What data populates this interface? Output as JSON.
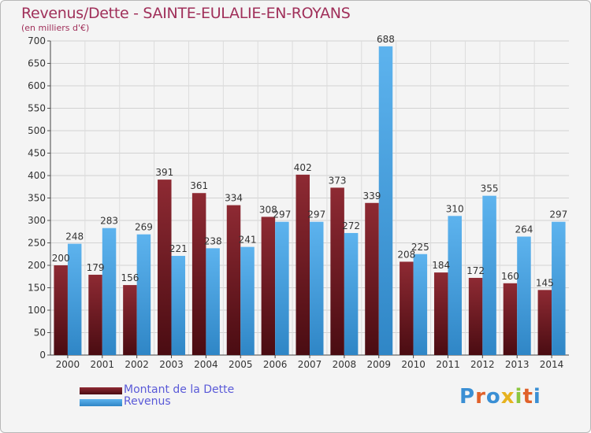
{
  "title": "Revenus/Dette - SAINTE-EULALIE-EN-ROYANS",
  "subtitle": "(en milliers d'€)",
  "logo_text": "Proxiti",
  "chart_data": {
    "type": "bar",
    "title": "Revenus/Dette - SAINTE-EULALIE-EN-ROYANS",
    "ylabel": "(en milliers d'€)",
    "xlabel": "",
    "ylim": [
      0,
      700
    ],
    "yticks": [
      0,
      50,
      100,
      150,
      200,
      250,
      300,
      350,
      400,
      450,
      500,
      550,
      600,
      650,
      700
    ],
    "grid": true,
    "legend_position": "bottom-left",
    "categories": [
      "2000",
      "2001",
      "2002",
      "2003",
      "2004",
      "2005",
      "2006",
      "2007",
      "2008",
      "2009",
      "2010",
      "2011",
      "2012",
      "2013",
      "2014"
    ],
    "series": [
      {
        "name": "Montant de la Dette",
        "color": "#7a1f28",
        "values": [
          200,
          179,
          156,
          391,
          361,
          334,
          308,
          402,
          373,
          339,
          208,
          184,
          172,
          160,
          145
        ]
      },
      {
        "name": "Revenus",
        "color": "#47a3e0",
        "values": [
          248,
          283,
          269,
          221,
          238,
          241,
          297,
          297,
          272,
          688,
          225,
          310,
          355,
          264,
          297
        ]
      }
    ]
  }
}
